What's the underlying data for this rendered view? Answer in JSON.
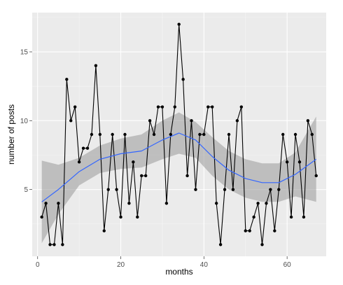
{
  "chart_data": {
    "type": "line",
    "title": "",
    "xlabel": "months",
    "ylabel": "number of posts",
    "xlim": [
      -1.3,
      69.4
    ],
    "ylim": [
      0.15,
      17.85
    ],
    "x_ticks": [
      0,
      20,
      40,
      60
    ],
    "y_ticks": [
      5,
      10,
      15
    ],
    "grid": true,
    "legend": "none",
    "colors": {
      "panel": "#ebebeb",
      "grid_major": "#ffffff",
      "grid_minor": "#f5f5f5",
      "line": "#000000",
      "points": "#000000",
      "smooth": "#3366ff",
      "band": "#999999"
    },
    "series": [
      {
        "x": [
          1,
          2,
          3,
          4,
          5,
          6,
          7,
          8,
          9,
          10,
          11,
          12,
          13,
          14,
          15,
          16,
          17,
          18,
          19,
          20,
          21,
          22,
          23,
          24,
          25,
          26,
          27,
          28,
          29,
          30,
          31,
          32,
          33,
          34,
          35,
          36,
          37,
          38,
          39,
          40,
          41,
          42,
          43,
          44,
          45,
          46,
          47,
          48,
          49,
          50,
          51,
          52,
          53,
          54,
          55,
          56,
          57,
          58,
          59,
          60,
          61,
          62,
          63,
          64,
          65,
          66,
          67
        ],
        "values": [
          3,
          4,
          1,
          1,
          4,
          1,
          13,
          10,
          11,
          7,
          8,
          8,
          9,
          14,
          9,
          2,
          5,
          9,
          5,
          3,
          9,
          4,
          7,
          3,
          6,
          6,
          10,
          9,
          11,
          11,
          4,
          9,
          11,
          17,
          13,
          6,
          10,
          5,
          9,
          9,
          11,
          11,
          4,
          1,
          5,
          9,
          5,
          10,
          11,
          2,
          2,
          3,
          4,
          1,
          4,
          5,
          2,
          5,
          9,
          7,
          3,
          9,
          7,
          3,
          10,
          9,
          6
        ]
      }
    ],
    "smooth": {
      "method": "loess",
      "x": [
        1,
        5,
        10,
        15,
        20,
        25,
        30,
        34,
        38,
        42,
        46,
        50,
        54,
        58,
        62,
        67
      ],
      "fit": [
        4.1,
        5.0,
        6.3,
        7.2,
        7.6,
        7.8,
        8.6,
        9.1,
        8.6,
        7.4,
        6.4,
        5.8,
        5.5,
        5.5,
        6.1,
        7.2
      ],
      "lower": [
        1.1,
        3.2,
        5.3,
        6.2,
        6.5,
        6.6,
        7.2,
        7.6,
        7.3,
        6.0,
        5.0,
        4.4,
        4.1,
        4.1,
        4.5,
        4.1
      ],
      "upper": [
        7.1,
        6.8,
        7.3,
        8.2,
        8.7,
        9.0,
        10.0,
        10.6,
        9.9,
        8.8,
        7.8,
        7.2,
        6.9,
        6.9,
        7.7,
        10.3
      ]
    }
  }
}
